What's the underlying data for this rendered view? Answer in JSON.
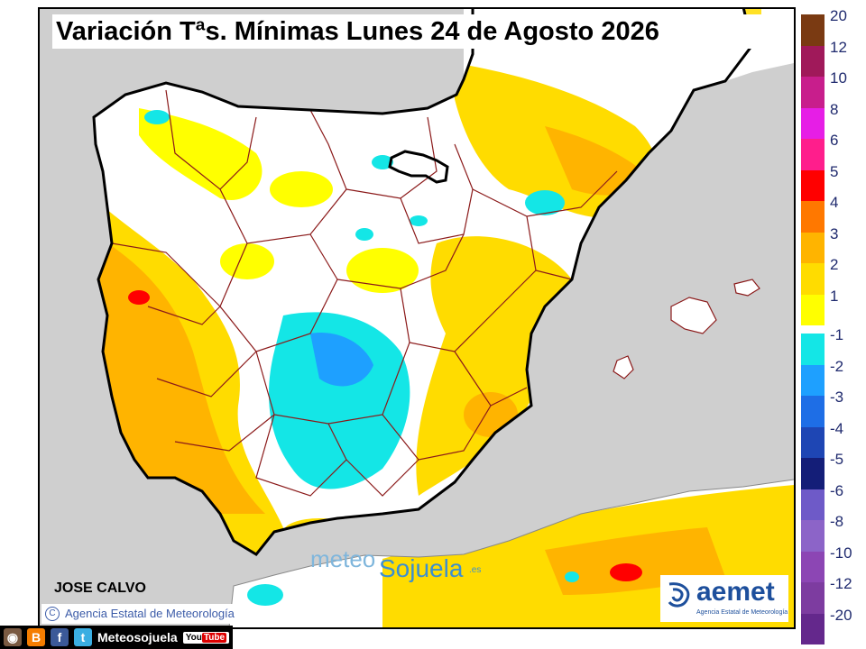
{
  "title": "Variación Tªs. Mínimas Lunes 24 de Agosto 2026",
  "author": "JOSE CALVO",
  "credit": "Agencia Estatal de Meteorología",
  "credit_symbol": "C",
  "social": {
    "handle": "Meteosojuela",
    "youtube": "You",
    "youtube_tube": "Tube",
    "icons": [
      "instagram-icon",
      "blogger-icon",
      "facebook-icon",
      "twitter-icon"
    ],
    "glyphs": [
      "◉",
      "B",
      "f",
      "t"
    ]
  },
  "watermark": {
    "part1": "meteo",
    "part2": "Sojuela",
    "part3": ".es"
  },
  "aemet": {
    "name": "aemet",
    "subtitle": "Agencia Estatal de Meteorología"
  },
  "legend": {
    "positive": [
      {
        "label": "20",
        "color": "#7a3a12"
      },
      {
        "label": "12",
        "color": "#a0195a"
      },
      {
        "label": "10",
        "color": "#c81e8c"
      },
      {
        "label": "8",
        "color": "#e61ee6"
      },
      {
        "label": "6",
        "color": "#ff1e8c"
      },
      {
        "label": "5",
        "color": "#ff0000"
      },
      {
        "label": "4",
        "color": "#ff7800"
      },
      {
        "label": "3",
        "color": "#ffb400"
      },
      {
        "label": "2",
        "color": "#ffdc00"
      },
      {
        "label": "1",
        "color": "#ffff00"
      }
    ],
    "negative": [
      {
        "label": "-1",
        "color": "#14e6e6"
      },
      {
        "label": "-2",
        "color": "#1ea0ff"
      },
      {
        "label": "-3",
        "color": "#1e6ee6"
      },
      {
        "label": "-4",
        "color": "#1e46b4"
      },
      {
        "label": "-5",
        "color": "#141e78"
      },
      {
        "label": "-6",
        "color": "#6e5ac8"
      },
      {
        "label": "-8",
        "color": "#8c64c8"
      },
      {
        "label": "-10",
        "color": "#8c46b4"
      },
      {
        "label": "-12",
        "color": "#7d3ca0"
      },
      {
        "label": "-20",
        "color": "#64288c"
      }
    ]
  },
  "map_colors": {
    "sea": "#cfcfcf",
    "land_neutral": "#ffffff",
    "warm_1": "#ffff00",
    "warm_2": "#ffdc00",
    "warm_3": "#ffb400",
    "warm_5": "#ff0000",
    "cool_1": "#14e6e6",
    "cool_2": "#1ea0ff",
    "borders": "#8b1a1a"
  }
}
